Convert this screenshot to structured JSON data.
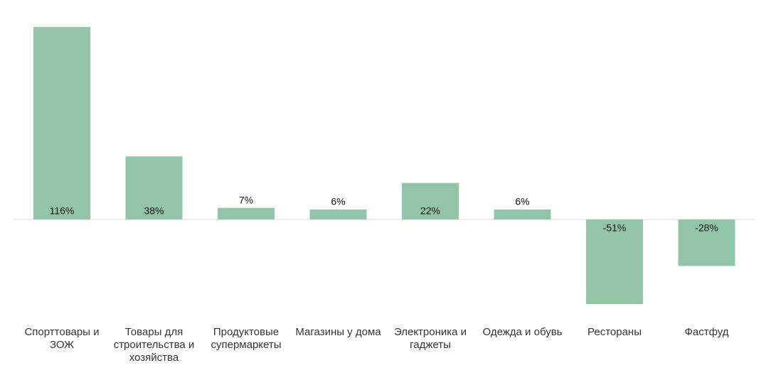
{
  "chart_data": {
    "type": "bar",
    "categories": [
      "Спорттовары и ЗОЖ",
      "Товары для строительства и хозяйства",
      "Продуктовые супермаркеты",
      "Магазины у дома",
      "Электроника и гаджеты",
      "Одежда и обувь",
      "Рестораны",
      "Фастфуд"
    ],
    "values": [
      116,
      38,
      7,
      6,
      22,
      6,
      -51,
      -28
    ],
    "value_labels": [
      "116%",
      "38%",
      "7%",
      "6%",
      "22%",
      "6%",
      "-51%",
      "-28%"
    ],
    "color": "#92c5a8"
  }
}
